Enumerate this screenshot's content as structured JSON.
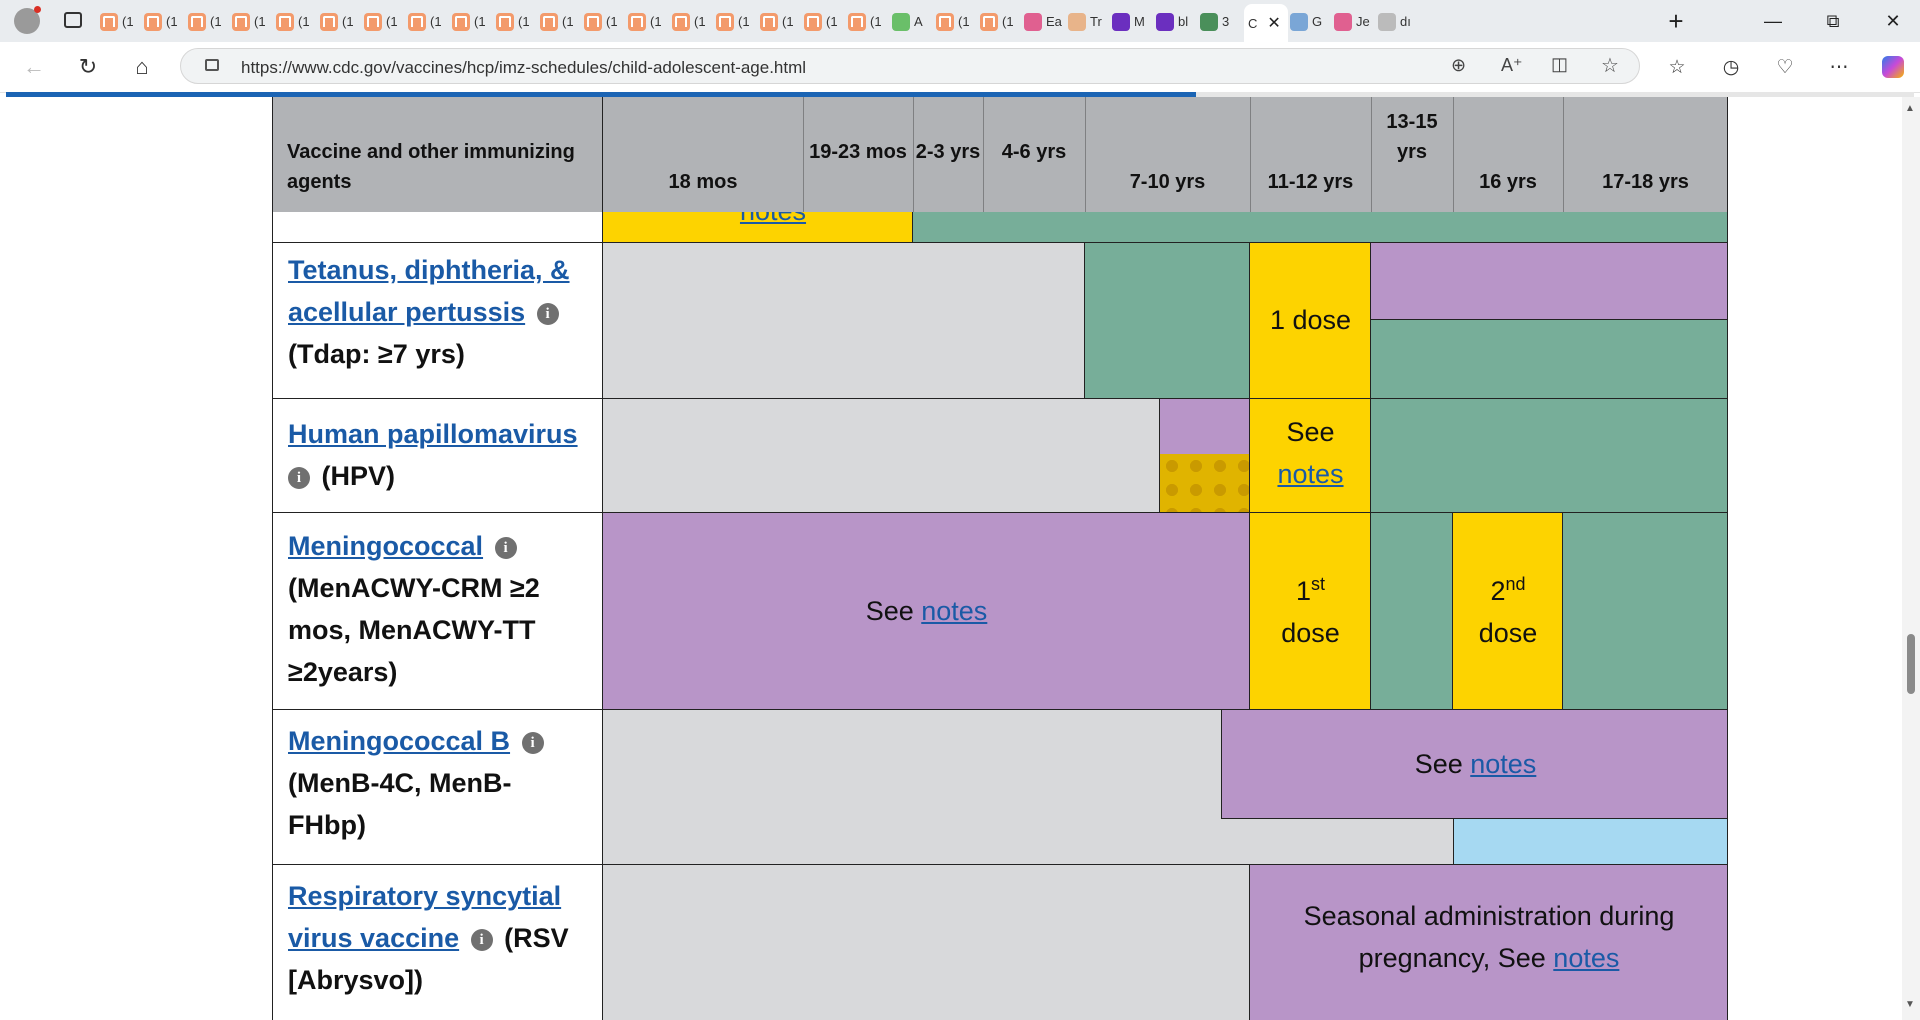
{
  "browser": {
    "tabs": [
      {
        "title": "(1",
        "icon": "bookmark-icon"
      },
      {
        "title": "(1",
        "icon": "bookmark-icon"
      },
      {
        "title": "(1",
        "icon": "bookmark-icon"
      },
      {
        "title": "(1",
        "icon": "bookmark-icon"
      },
      {
        "title": "(1",
        "icon": "bookmark-icon"
      },
      {
        "title": "(1",
        "icon": "bookmark-icon"
      },
      {
        "title": "(1",
        "icon": "bookmark-icon"
      },
      {
        "title": "(1",
        "icon": "bookmark-icon"
      },
      {
        "title": "(1",
        "icon": "bookmark-icon"
      },
      {
        "title": "(1",
        "icon": "bookmark-icon"
      },
      {
        "title": "(1",
        "icon": "bookmark-icon"
      },
      {
        "title": "(1",
        "icon": "bookmark-icon"
      },
      {
        "title": "(1",
        "icon": "bookmark-icon"
      },
      {
        "title": "(1",
        "icon": "bookmark-icon"
      },
      {
        "title": "(1",
        "icon": "bookmark-icon"
      },
      {
        "title": "(1",
        "icon": "bookmark-icon"
      },
      {
        "title": "(1",
        "icon": "bookmark-icon"
      },
      {
        "title": "(1",
        "icon": "bookmark-icon"
      },
      {
        "title": "A",
        "icon": "play-icon"
      },
      {
        "title": "(1",
        "icon": "bookmark-icon"
      },
      {
        "title": "(1",
        "icon": "bookmark-icon"
      },
      {
        "title": "Ea",
        "icon": "video-icon"
      },
      {
        "title": "Tr",
        "icon": "circle-icon"
      },
      {
        "title": "M",
        "icon": "yahoo-icon"
      },
      {
        "title": "bl",
        "icon": "yahoo-icon"
      },
      {
        "title": "3",
        "icon": "wh-icon"
      },
      {
        "title": "C",
        "icon": "none",
        "active": true
      },
      {
        "title": "G",
        "icon": "swirl-icon"
      },
      {
        "title": "Je",
        "icon": "video-icon"
      },
      {
        "title": "dı",
        "icon": "search-icon"
      }
    ],
    "url": "https://www.cdc.gov/vaccines/hcp/imz-schedules/child-adolescent-age.html"
  },
  "table": {
    "header": {
      "vaccine_col": "Vaccine and other immunizing agents",
      "ages": [
        "18 mos",
        "19-23 mos",
        "2-3 yrs",
        "4-6 yrs",
        "7-10 yrs",
        "11-12 yrs",
        "13-15 yrs",
        "16 yrs",
        "17-18 yrs"
      ]
    },
    "top_partial_text": "notes",
    "rows": {
      "tdap": {
        "name_link": "Tetanus, diphtheria, & acellular pertussis",
        "name_rest": "(Tdap: ≥7 yrs)",
        "dose": "1 dose"
      },
      "hpv": {
        "name_link": "Human papillomavirus",
        "name_rest": "(HPV)",
        "see": "See",
        "notes": "notes"
      },
      "menacwy": {
        "name_link": "Meningococcal",
        "name_rest": "(MenACWY-CRM ≥2 mos, MenACWY-TT ≥2years)",
        "see": "See",
        "notes": "notes",
        "dose1_num": "1",
        "dose1_sup": "st",
        "dose2_num": "2",
        "dose2_sup": "nd",
        "dose_word": "dose"
      },
      "menb": {
        "name_link": "Meningococcal B",
        "name_rest": "(MenB-4C, MenB-FHbp)",
        "see": "See",
        "notes": "notes"
      },
      "rsv": {
        "name_link": "Respiratory syncytial virus vaccine",
        "name_rest": "(RSV [Abrysvo])",
        "text": "Seasonal administration during pregnancy, See",
        "notes": "notes"
      }
    }
  },
  "colors": {
    "range_yellow": "#fdd300",
    "catchup_green": "#77ae99",
    "highrisk_purple": "#b895c8",
    "not_routine_gray": "#d8d9db",
    "shared_decision_blue": "#a6d9f2",
    "header_gray": "#b1b3b6",
    "link_blue": "#1a5aa6"
  }
}
